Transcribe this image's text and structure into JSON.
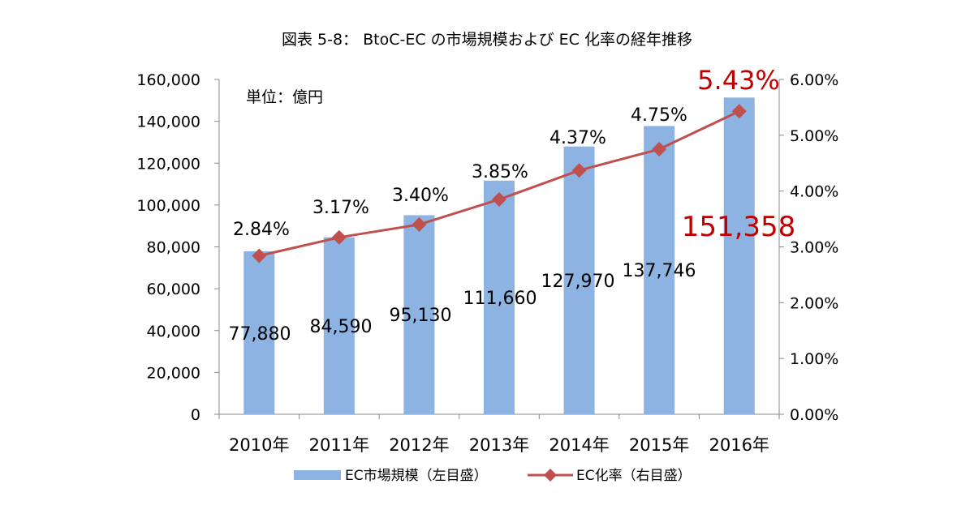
{
  "chart_data": {
    "type": "bar",
    "title": "図表 5-8： BtoC-EC の市場規模および EC 化率の経年推移",
    "unit_note": "単位：億円",
    "categories": [
      "2010年",
      "2011年",
      "2012年",
      "2013年",
      "2014年",
      "2015年",
      "2016年"
    ],
    "series": [
      {
        "name": "EC市場規模（左目盛）",
        "type": "bar",
        "axis": "left",
        "values": [
          77880,
          84590,
          95130,
          111660,
          127970,
          137746,
          151358
        ],
        "labels": [
          "77,880",
          "84,590",
          "95,130",
          "111,660",
          "127,970",
          "137,746",
          "151,358"
        ],
        "color": "#8DB3E2"
      },
      {
        "name": "EC化率（右目盛）",
        "type": "line",
        "axis": "right",
        "values": [
          2.84,
          3.17,
          3.4,
          3.85,
          4.37,
          4.75,
          5.43
        ],
        "labels": [
          "2.84%",
          "3.17%",
          "3.40%",
          "3.85%",
          "4.37%",
          "4.75%",
          "5.43%"
        ],
        "color": "#C0504D"
      }
    ],
    "y_left": {
      "min": 0,
      "max": 160000,
      "step": 20000,
      "tick_labels": [
        "0",
        "20,000",
        "40,000",
        "60,000",
        "80,000",
        "100,000",
        "120,000",
        "140,000",
        "160,000"
      ]
    },
    "y_right": {
      "min": 0,
      "max": 6,
      "step": 1,
      "tick_labels": [
        "0.00%",
        "1.00%",
        "2.00%",
        "3.00%",
        "4.00%",
        "5.00%",
        "6.00%"
      ]
    },
    "grid": false,
    "legend_position": "bottom",
    "highlight_color": "#C00000"
  }
}
